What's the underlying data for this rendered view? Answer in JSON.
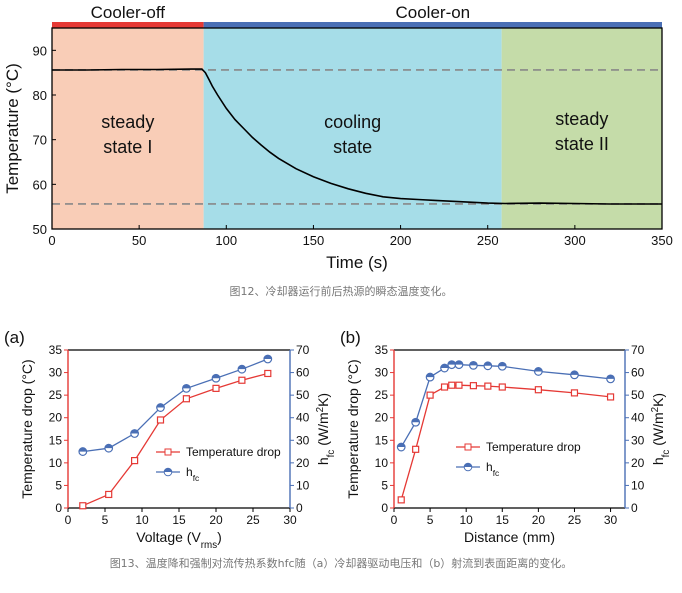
{
  "chart_data": [
    {
      "type": "line",
      "id": "fig12",
      "xlabel": "Time (s)",
      "ylabel": "Temperature (°C)",
      "xlim": [
        0,
        350
      ],
      "ylim": [
        50,
        95
      ],
      "xticks": [
        0,
        50,
        100,
        150,
        200,
        250,
        300,
        350
      ],
      "yticks": [
        50,
        60,
        70,
        80,
        90
      ],
      "bar_labels": {
        "cooler_off": "Cooler-off",
        "cooler_on": "Cooler-on"
      },
      "bar_colors": {
        "cooler_off": "#e53935",
        "cooler_on": "#4a6fb5"
      },
      "regions": [
        {
          "x0": 0,
          "x1": 87,
          "color": "#f9cdb7",
          "label_lines": [
            "steady",
            "state I"
          ]
        },
        {
          "x0": 87,
          "x1": 258,
          "color": "#a6dde8",
          "label_lines": [
            "cooling",
            "state"
          ]
        },
        {
          "x0": 258,
          "x1": 350,
          "color": "#c5dca9",
          "label_lines": [
            "steady",
            "state II"
          ]
        }
      ],
      "reference_lines": [
        85.6,
        55.6
      ],
      "series": [
        {
          "x": [
            0,
            20,
            40,
            60,
            80,
            86,
            88,
            90,
            92,
            95,
            100,
            105,
            110,
            115,
            120,
            125,
            130,
            140,
            150,
            160,
            170,
            180,
            190,
            200,
            210,
            220,
            230,
            240,
            250,
            260,
            280,
            300,
            320,
            350
          ],
          "values": [
            85.6,
            85.6,
            85.7,
            85.7,
            85.8,
            85.8,
            85.0,
            83.5,
            82.0,
            80.0,
            77.0,
            74.5,
            72.5,
            70.5,
            68.8,
            67.2,
            65.8,
            63.5,
            61.7,
            60.2,
            59.0,
            58.0,
            57.2,
            56.8,
            56.6,
            56.4,
            56.2,
            56.0,
            55.8,
            55.7,
            55.8,
            55.7,
            55.6,
            55.6
          ]
        }
      ]
    },
    {
      "type": "line",
      "id": "fig13a",
      "panel_label": "(a)",
      "xlabel": "Voltage (V",
      "xlabel_sub": "rms",
      "xlabel_end": ")",
      "ylabel": "Temperature drop (°C)",
      "ylabel_right": "h",
      "ylabel_right_sub": "fc",
      "ylabel_right_units": " (W/m",
      "ylabel_right_sup": "2",
      "ylabel_right_end": "K)",
      "xlim": [
        0,
        30
      ],
      "xticks": [
        0,
        5,
        10,
        15,
        20,
        25,
        30
      ],
      "ylim_left": [
        0,
        35
      ],
      "yticks_left": [
        0,
        5,
        10,
        15,
        20,
        25,
        30,
        35
      ],
      "ylim_right": [
        0,
        70
      ],
      "yticks_right": [
        0,
        10,
        20,
        30,
        40,
        50,
        60,
        70
      ],
      "series": [
        {
          "name": "Temperature drop",
          "axis": "left",
          "color": "#e53935",
          "marker": "square",
          "x": [
            2,
            5.5,
            9,
            12.5,
            16,
            20,
            23.5,
            27
          ],
          "values": [
            0.5,
            3,
            10.5,
            19.5,
            24.2,
            26.5,
            28.3,
            29.8
          ]
        },
        {
          "name": "h",
          "name_sub": "fc",
          "axis": "right",
          "color": "#4a6fb5",
          "marker": "circle",
          "x": [
            2,
            5.5,
            9,
            12.5,
            16,
            20,
            23.5,
            27
          ],
          "values": [
            25,
            26.5,
            33,
            44.5,
            53,
            57.5,
            61.5,
            66
          ]
        }
      ]
    },
    {
      "type": "line",
      "id": "fig13b",
      "panel_label": "(b)",
      "xlabel": "Distance (mm)",
      "ylabel": "Temperature drop (°C)",
      "ylabel_right": "h",
      "ylabel_right_sub": "fc",
      "ylabel_right_units": " (W/m",
      "ylabel_right_sup": "2",
      "ylabel_right_end": "K)",
      "xlim": [
        0,
        32
      ],
      "xticks": [
        0,
        5,
        10,
        15,
        20,
        25,
        30
      ],
      "ylim_left": [
        0,
        35
      ],
      "yticks_left": [
        0,
        5,
        10,
        15,
        20,
        25,
        30,
        35
      ],
      "ylim_right": [
        0,
        70
      ],
      "yticks_right": [
        0,
        10,
        20,
        30,
        40,
        50,
        60,
        70
      ],
      "series": [
        {
          "name": "Temperature drop",
          "axis": "left",
          "color": "#e53935",
          "marker": "square",
          "x": [
            1,
            3,
            5,
            7,
            8,
            9,
            11,
            13,
            15,
            20,
            25,
            30
          ],
          "values": [
            1.8,
            13,
            25,
            26.8,
            27.2,
            27.2,
            27.1,
            27,
            26.8,
            26.2,
            25.5,
            24.6
          ]
        },
        {
          "name": "h",
          "name_sub": "fc",
          "axis": "right",
          "color": "#4a6fb5",
          "marker": "circle",
          "x": [
            1,
            3,
            5,
            7,
            8,
            9,
            11,
            13,
            15,
            20,
            25,
            30
          ],
          "values": [
            27,
            38,
            58,
            62,
            63.5,
            63.5,
            63.2,
            63,
            62.8,
            60.5,
            59,
            57.2
          ]
        }
      ]
    }
  ],
  "captions": {
    "fig12": "图12、冷却器运行前后热源的瞬态温度变化。",
    "fig13": "图13、温度降和强制对流传热系数hfc随（a）冷却器驱动电压和（b）射流到表面距离的变化。"
  }
}
